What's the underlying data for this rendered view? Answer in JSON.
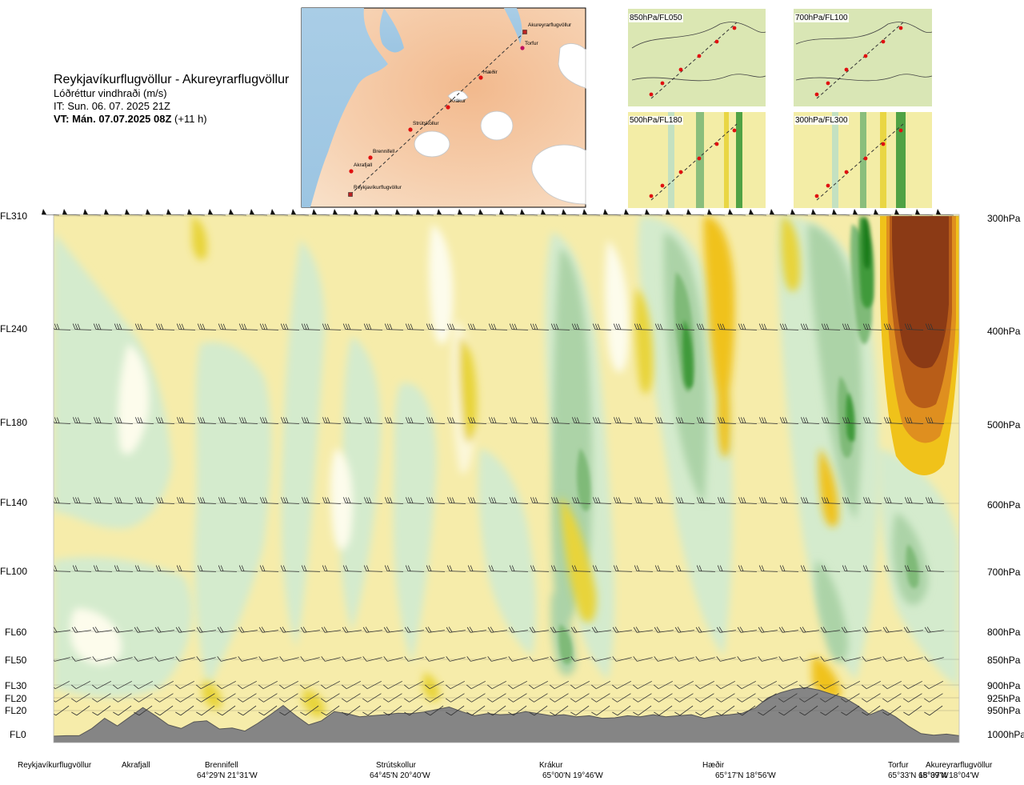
{
  "title": {
    "route": "Reykjavíkurflugvöllur - Akureyrarflugvöllur",
    "parameter": "Lóðréttur vindhraði (m/s)",
    "issue_time": "IT: Sun. 06. 07. 2025 21Z",
    "valid_time_bold": "VT: Mán. 07.07.2025 08Z",
    "valid_time_lead": "(+11 h)"
  },
  "map": {
    "places": [
      "Akureyrarflugvöllur",
      "Torfur",
      "Hæðir",
      "Krákur",
      "Strútskollur",
      "Brennifell",
      "Akrafjall",
      "Reykjavíkurflugvöllur"
    ]
  },
  "insets": [
    {
      "label": "850hPa/FL050"
    },
    {
      "label": "700hPa/FL100"
    },
    {
      "label": "500hPa/FL180"
    },
    {
      "label": "300hPa/FL300"
    }
  ],
  "chart_data": {
    "type": "cross-section contour",
    "title": "Lóðréttur vindhraði (m/s)",
    "left_axis_flight_levels": [
      "FL310",
      "FL240",
      "FL180",
      "FL140",
      "FL100",
      "FL60",
      "FL50",
      "FL30",
      "FL20",
      "FL20",
      "FL0"
    ],
    "right_axis_pressure_levels": [
      "300hPa",
      "400hPa",
      "500hPa",
      "600hPa",
      "700hPa",
      "800hPa",
      "850hPa",
      "900hPa",
      "925hPa",
      "950hPa",
      "1000hPa"
    ],
    "pressure_hPa": [
      300,
      400,
      500,
      600,
      700,
      800,
      850,
      900,
      925,
      950,
      1000
    ],
    "waypoints": [
      {
        "name": "Reykjavíkurflugvöllur",
        "coord": ""
      },
      {
        "name": "Akrafjall",
        "coord": ""
      },
      {
        "name": "Brennifell",
        "coord": "64°29'N 21°31'W"
      },
      {
        "name": "Strútskollur",
        "coord": "64°45'N 20°40'W"
      },
      {
        "name": "Krákur",
        "coord": "65°00'N 19°46'W"
      },
      {
        "name": "Hæðir",
        "coord": "65°17'N 18°56'W"
      },
      {
        "name": "Torfur",
        "coord": "65°33'N 18°07'W"
      },
      {
        "name": "Akureyrarflugvöllur",
        "coord": "65°39'N 18°04'W"
      }
    ],
    "distance_fraction": [
      0.0,
      0.09,
      0.2,
      0.38,
      0.56,
      0.74,
      0.95,
      1.0
    ],
    "terrain_pressure_hPa": [
      1000,
      999,
      999,
      985,
      965,
      980,
      962,
      944,
      960,
      978,
      985,
      972,
      970,
      986,
      984,
      990,
      975,
      958,
      940,
      960,
      978,
      970,
      952,
      956,
      962,
      960,
      958,
      955,
      956,
      953,
      948,
      943,
      952,
      960,
      956,
      958,
      957,
      952,
      956,
      960,
      958,
      962,
      960,
      965,
      964,
      960,
      962,
      958,
      962,
      960,
      958,
      965,
      960,
      958,
      955,
      945,
      925,
      915,
      908,
      905,
      910,
      918,
      925,
      940,
      958,
      948,
      962,
      980,
      995,
      998,
      996,
      999
    ],
    "wind_flight_levels": [
      "FL310",
      "FL240",
      "FL180",
      "FL140",
      "FL100",
      "FL60",
      "FL50"
    ],
    "colors": {
      "strong_down": "#8b3a15",
      "down_3": "#b85d18",
      "down_2": "#df8f1f",
      "down_1": "#f0c21a",
      "weak_down": "#e8d43a",
      "slight_down": "#f6ecaa",
      "near_zero": "#fdfcec",
      "slight_up": "#d4ebcd",
      "weak_up": "#acd3a7",
      "up_2": "#7fba78",
      "up_3": "#3f9a3a",
      "strong_up": "#1f7d1f",
      "terrain": "#858585",
      "route": "#333333",
      "waypoint": "#e01010"
    }
  }
}
